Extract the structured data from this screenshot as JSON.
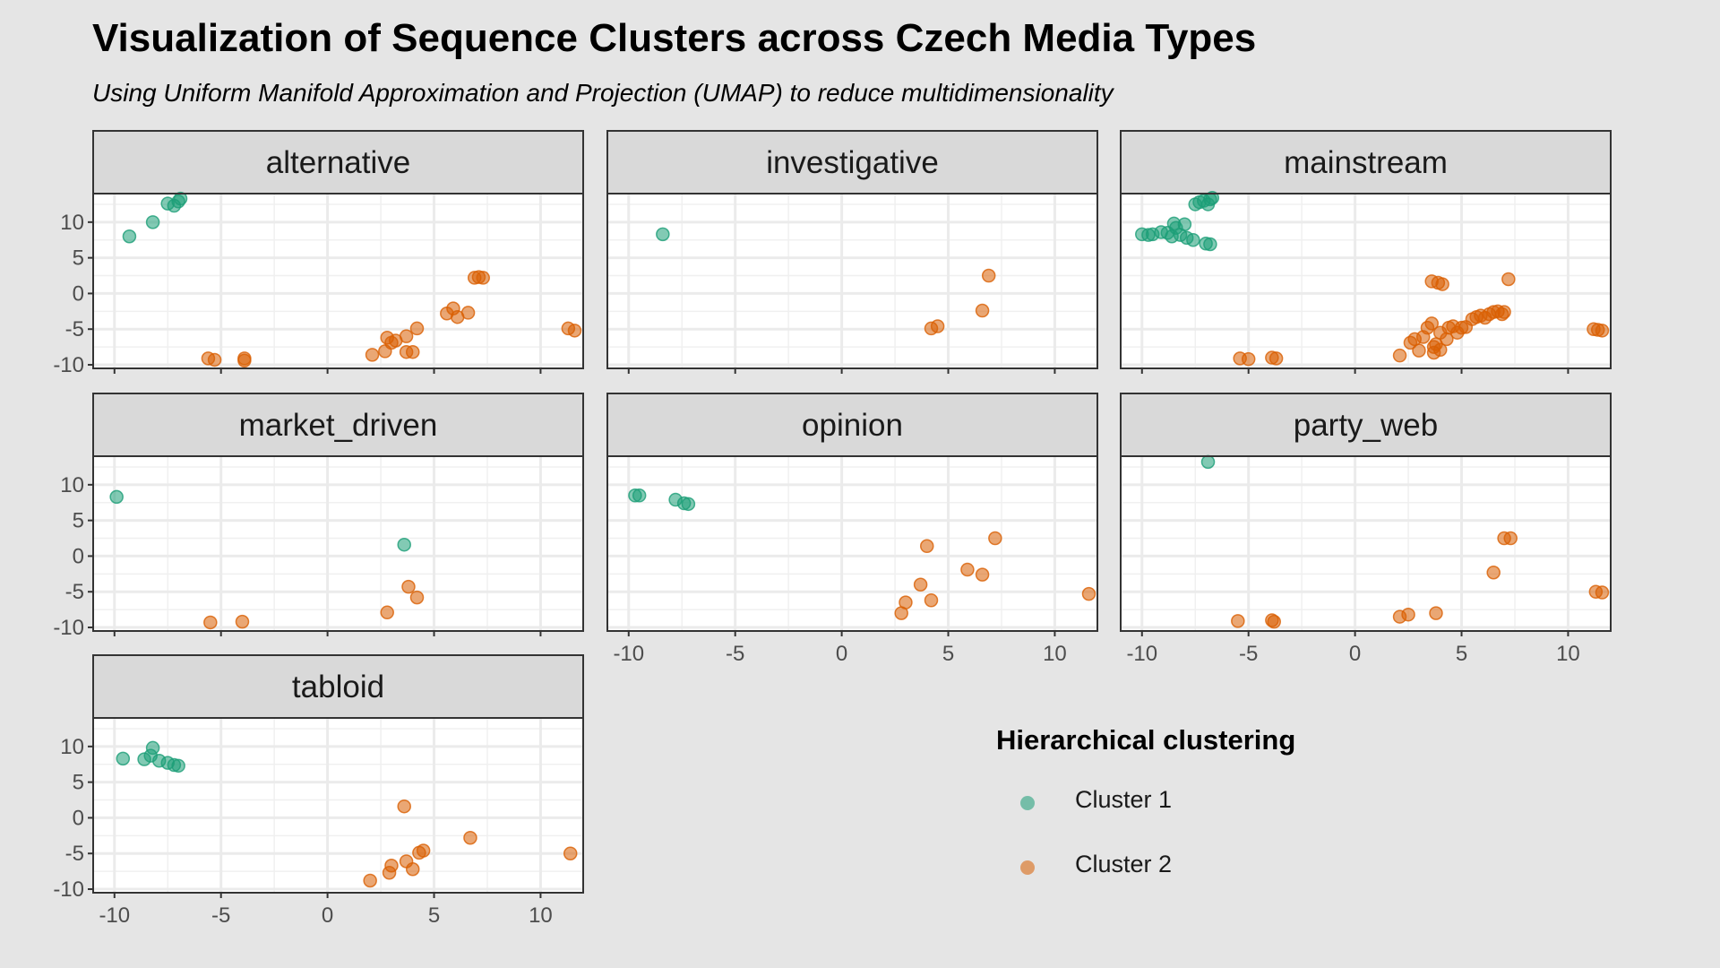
{
  "title": "Visualization of Sequence Clusters across Czech Media Types",
  "subtitle": "Using Uniform Manifold Approximation and Projection (UMAP) to reduce multidimensionality",
  "legend": {
    "title": "Hierarchical clustering",
    "items": [
      {
        "label": "Cluster 1",
        "color": "#1b9e77"
      },
      {
        "label": "Cluster 2",
        "color": "#d95f02"
      }
    ]
  },
  "chart_data": {
    "type": "scatter",
    "facet_layout": "3 columns x 3 rows, shared axes",
    "xlim": [
      -11,
      12
    ],
    "ylim": [
      -10.5,
      14
    ],
    "x_ticks": [
      -10,
      -5,
      0,
      5,
      10
    ],
    "y_ticks": [
      10,
      5,
      0,
      -5,
      -10
    ],
    "grid": true,
    "legend_position": "right",
    "point_alpha": 0.55,
    "series": [
      {
        "name": "Cluster 1"
      },
      {
        "name": "Cluster 2"
      }
    ],
    "facets": [
      {
        "name": "alternative",
        "points": [
          {
            "x": -9.3,
            "y": 8.0,
            "cluster": 1
          },
          {
            "x": -8.2,
            "y": 10.0,
            "cluster": 1
          },
          {
            "x": -7.5,
            "y": 12.6,
            "cluster": 1
          },
          {
            "x": -7.2,
            "y": 12.3,
            "cluster": 1
          },
          {
            "x": -7.0,
            "y": 12.9,
            "cluster": 1
          },
          {
            "x": -6.9,
            "y": 13.3,
            "cluster": 1
          },
          {
            "x": -5.6,
            "y": -9.1,
            "cluster": 2
          },
          {
            "x": -5.3,
            "y": -9.3,
            "cluster": 2
          },
          {
            "x": -3.9,
            "y": -9.1,
            "cluster": 2
          },
          {
            "x": -3.9,
            "y": -9.4,
            "cluster": 2
          },
          {
            "x": 2.1,
            "y": -8.6,
            "cluster": 2
          },
          {
            "x": 2.7,
            "y": -8.1,
            "cluster": 2
          },
          {
            "x": 2.8,
            "y": -6.2,
            "cluster": 2
          },
          {
            "x": 3.0,
            "y": -6.9,
            "cluster": 2
          },
          {
            "x": 3.2,
            "y": -6.6,
            "cluster": 2
          },
          {
            "x": 3.7,
            "y": -6.0,
            "cluster": 2
          },
          {
            "x": 3.7,
            "y": -8.2,
            "cluster": 2
          },
          {
            "x": 4.0,
            "y": -8.2,
            "cluster": 2
          },
          {
            "x": 4.2,
            "y": -4.9,
            "cluster": 2
          },
          {
            "x": 5.6,
            "y": -2.8,
            "cluster": 2
          },
          {
            "x": 5.9,
            "y": -2.1,
            "cluster": 2
          },
          {
            "x": 6.1,
            "y": -3.3,
            "cluster": 2
          },
          {
            "x": 6.6,
            "y": -2.7,
            "cluster": 2
          },
          {
            "x": 6.9,
            "y": 2.2,
            "cluster": 2
          },
          {
            "x": 7.1,
            "y": 2.3,
            "cluster": 2
          },
          {
            "x": 7.3,
            "y": 2.2,
            "cluster": 2
          },
          {
            "x": 11.3,
            "y": -4.9,
            "cluster": 2
          },
          {
            "x": 11.6,
            "y": -5.2,
            "cluster": 2
          }
        ]
      },
      {
        "name": "investigative",
        "points": [
          {
            "x": -8.4,
            "y": 8.3,
            "cluster": 1
          },
          {
            "x": 4.2,
            "y": -4.9,
            "cluster": 2
          },
          {
            "x": 4.5,
            "y": -4.6,
            "cluster": 2
          },
          {
            "x": 6.6,
            "y": -2.4,
            "cluster": 2
          },
          {
            "x": 6.9,
            "y": 2.5,
            "cluster": 2
          }
        ]
      },
      {
        "name": "mainstream",
        "points": [
          {
            "x": -10.0,
            "y": 8.3,
            "cluster": 1
          },
          {
            "x": -9.7,
            "y": 8.2,
            "cluster": 1
          },
          {
            "x": -9.5,
            "y": 8.3,
            "cluster": 1
          },
          {
            "x": -9.1,
            "y": 8.6,
            "cluster": 1
          },
          {
            "x": -8.8,
            "y": 8.5,
            "cluster": 1
          },
          {
            "x": -8.6,
            "y": 8.0,
            "cluster": 1
          },
          {
            "x": -8.5,
            "y": 9.8,
            "cluster": 1
          },
          {
            "x": -8.4,
            "y": 9.2,
            "cluster": 1
          },
          {
            "x": -8.2,
            "y": 8.2,
            "cluster": 1
          },
          {
            "x": -8.0,
            "y": 9.7,
            "cluster": 1
          },
          {
            "x": -7.9,
            "y": 7.8,
            "cluster": 1
          },
          {
            "x": -7.6,
            "y": 7.5,
            "cluster": 1
          },
          {
            "x": -7.5,
            "y": 12.5,
            "cluster": 1
          },
          {
            "x": -7.3,
            "y": 12.8,
            "cluster": 1
          },
          {
            "x": -7.1,
            "y": 13.0,
            "cluster": 1
          },
          {
            "x": -7.0,
            "y": 7.0,
            "cluster": 1
          },
          {
            "x": -6.9,
            "y": 12.5,
            "cluster": 1
          },
          {
            "x": -6.8,
            "y": 6.9,
            "cluster": 1
          },
          {
            "x": -6.8,
            "y": 13.2,
            "cluster": 1
          },
          {
            "x": -6.7,
            "y": 13.4,
            "cluster": 1
          },
          {
            "x": -5.4,
            "y": -9.1,
            "cluster": 2
          },
          {
            "x": -5.0,
            "y": -9.2,
            "cluster": 2
          },
          {
            "x": -3.9,
            "y": -9.0,
            "cluster": 2
          },
          {
            "x": -3.7,
            "y": -9.1,
            "cluster": 2
          },
          {
            "x": 2.1,
            "y": -8.7,
            "cluster": 2
          },
          {
            "x": 2.6,
            "y": -6.9,
            "cluster": 2
          },
          {
            "x": 2.8,
            "y": -6.4,
            "cluster": 2
          },
          {
            "x": 3.0,
            "y": -8.0,
            "cluster": 2
          },
          {
            "x": 3.2,
            "y": -6.1,
            "cluster": 2
          },
          {
            "x": 3.4,
            "y": -4.8,
            "cluster": 2
          },
          {
            "x": 3.6,
            "y": -4.2,
            "cluster": 2
          },
          {
            "x": 3.6,
            "y": 1.7,
            "cluster": 2
          },
          {
            "x": 3.7,
            "y": -7.5,
            "cluster": 2
          },
          {
            "x": 3.7,
            "y": -8.3,
            "cluster": 2
          },
          {
            "x": 3.8,
            "y": -7.1,
            "cluster": 2
          },
          {
            "x": 3.9,
            "y": 1.5,
            "cluster": 2
          },
          {
            "x": 4.0,
            "y": -5.5,
            "cluster": 2
          },
          {
            "x": 4.0,
            "y": -7.9,
            "cluster": 2
          },
          {
            "x": 4.1,
            "y": 1.3,
            "cluster": 2
          },
          {
            "x": 4.3,
            "y": -6.4,
            "cluster": 2
          },
          {
            "x": 4.4,
            "y": -4.8,
            "cluster": 2
          },
          {
            "x": 4.6,
            "y": -4.6,
            "cluster": 2
          },
          {
            "x": 4.8,
            "y": -5.5,
            "cluster": 2
          },
          {
            "x": 5.0,
            "y": -4.8,
            "cluster": 2
          },
          {
            "x": 5.2,
            "y": -4.7,
            "cluster": 2
          },
          {
            "x": 5.5,
            "y": -3.6,
            "cluster": 2
          },
          {
            "x": 5.7,
            "y": -3.3,
            "cluster": 2
          },
          {
            "x": 5.9,
            "y": -3.1,
            "cluster": 2
          },
          {
            "x": 6.1,
            "y": -3.4,
            "cluster": 2
          },
          {
            "x": 6.3,
            "y": -2.9,
            "cluster": 2
          },
          {
            "x": 6.5,
            "y": -2.6,
            "cluster": 2
          },
          {
            "x": 6.7,
            "y": -2.5,
            "cluster": 2
          },
          {
            "x": 6.9,
            "y": -2.9,
            "cluster": 2
          },
          {
            "x": 7.0,
            "y": -2.6,
            "cluster": 2
          },
          {
            "x": 7.2,
            "y": 2.0,
            "cluster": 2
          },
          {
            "x": 11.2,
            "y": -5.0,
            "cluster": 2
          },
          {
            "x": 11.4,
            "y": -5.1,
            "cluster": 2
          },
          {
            "x": 11.6,
            "y": -5.2,
            "cluster": 2
          }
        ]
      },
      {
        "name": "market_driven",
        "points": [
          {
            "x": -9.9,
            "y": 8.3,
            "cluster": 1
          },
          {
            "x": 3.6,
            "y": 1.6,
            "cluster": 1
          },
          {
            "x": -5.5,
            "y": -9.3,
            "cluster": 2
          },
          {
            "x": -4.0,
            "y": -9.2,
            "cluster": 2
          },
          {
            "x": 2.8,
            "y": -7.9,
            "cluster": 2
          },
          {
            "x": 3.8,
            "y": -4.3,
            "cluster": 2
          },
          {
            "x": 4.2,
            "y": -5.8,
            "cluster": 2
          }
        ]
      },
      {
        "name": "opinion",
        "points": [
          {
            "x": -9.7,
            "y": 8.5,
            "cluster": 1
          },
          {
            "x": -9.5,
            "y": 8.5,
            "cluster": 1
          },
          {
            "x": -7.8,
            "y": 7.9,
            "cluster": 1
          },
          {
            "x": -7.4,
            "y": 7.4,
            "cluster": 1
          },
          {
            "x": -7.2,
            "y": 7.3,
            "cluster": 1
          },
          {
            "x": 2.8,
            "y": -8.0,
            "cluster": 2
          },
          {
            "x": 3.0,
            "y": -6.5,
            "cluster": 2
          },
          {
            "x": 3.7,
            "y": -4.0,
            "cluster": 2
          },
          {
            "x": 4.0,
            "y": 1.4,
            "cluster": 2
          },
          {
            "x": 4.2,
            "y": -6.2,
            "cluster": 2
          },
          {
            "x": 5.9,
            "y": -1.9,
            "cluster": 2
          },
          {
            "x": 6.6,
            "y": -2.6,
            "cluster": 2
          },
          {
            "x": 7.2,
            "y": 2.5,
            "cluster": 2
          },
          {
            "x": 11.6,
            "y": -5.3,
            "cluster": 2
          }
        ]
      },
      {
        "name": "party_web",
        "points": [
          {
            "x": -6.9,
            "y": 13.2,
            "cluster": 1
          },
          {
            "x": -5.5,
            "y": -9.1,
            "cluster": 2
          },
          {
            "x": -3.9,
            "y": -9.0,
            "cluster": 2
          },
          {
            "x": -3.8,
            "y": -9.2,
            "cluster": 2
          },
          {
            "x": 2.1,
            "y": -8.5,
            "cluster": 2
          },
          {
            "x": 2.5,
            "y": -8.2,
            "cluster": 2
          },
          {
            "x": 3.8,
            "y": -8.0,
            "cluster": 2
          },
          {
            "x": 6.5,
            "y": -2.3,
            "cluster": 2
          },
          {
            "x": 7.0,
            "y": 2.5,
            "cluster": 2
          },
          {
            "x": 7.3,
            "y": 2.5,
            "cluster": 2
          },
          {
            "x": 11.3,
            "y": -5.0,
            "cluster": 2
          },
          {
            "x": 11.6,
            "y": -5.1,
            "cluster": 2
          }
        ]
      },
      {
        "name": "tabloid",
        "points": [
          {
            "x": -9.6,
            "y": 8.3,
            "cluster": 1
          },
          {
            "x": -8.6,
            "y": 8.2,
            "cluster": 1
          },
          {
            "x": -8.3,
            "y": 8.7,
            "cluster": 1
          },
          {
            "x": -8.2,
            "y": 9.8,
            "cluster": 1
          },
          {
            "x": -7.9,
            "y": 8.0,
            "cluster": 1
          },
          {
            "x": -7.5,
            "y": 7.7,
            "cluster": 1
          },
          {
            "x": -7.2,
            "y": 7.4,
            "cluster": 1
          },
          {
            "x": -7.0,
            "y": 7.3,
            "cluster": 1
          },
          {
            "x": 2.0,
            "y": -8.8,
            "cluster": 2
          },
          {
            "x": 2.9,
            "y": -7.7,
            "cluster": 2
          },
          {
            "x": 3.0,
            "y": -6.7,
            "cluster": 2
          },
          {
            "x": 3.6,
            "y": 1.6,
            "cluster": 2
          },
          {
            "x": 3.7,
            "y": -6.1,
            "cluster": 2
          },
          {
            "x": 4.0,
            "y": -7.2,
            "cluster": 2
          },
          {
            "x": 4.3,
            "y": -4.9,
            "cluster": 2
          },
          {
            "x": 4.5,
            "y": -4.6,
            "cluster": 2
          },
          {
            "x": 6.7,
            "y": -2.8,
            "cluster": 2
          },
          {
            "x": 11.4,
            "y": -5.0,
            "cluster": 2
          }
        ]
      }
    ]
  }
}
